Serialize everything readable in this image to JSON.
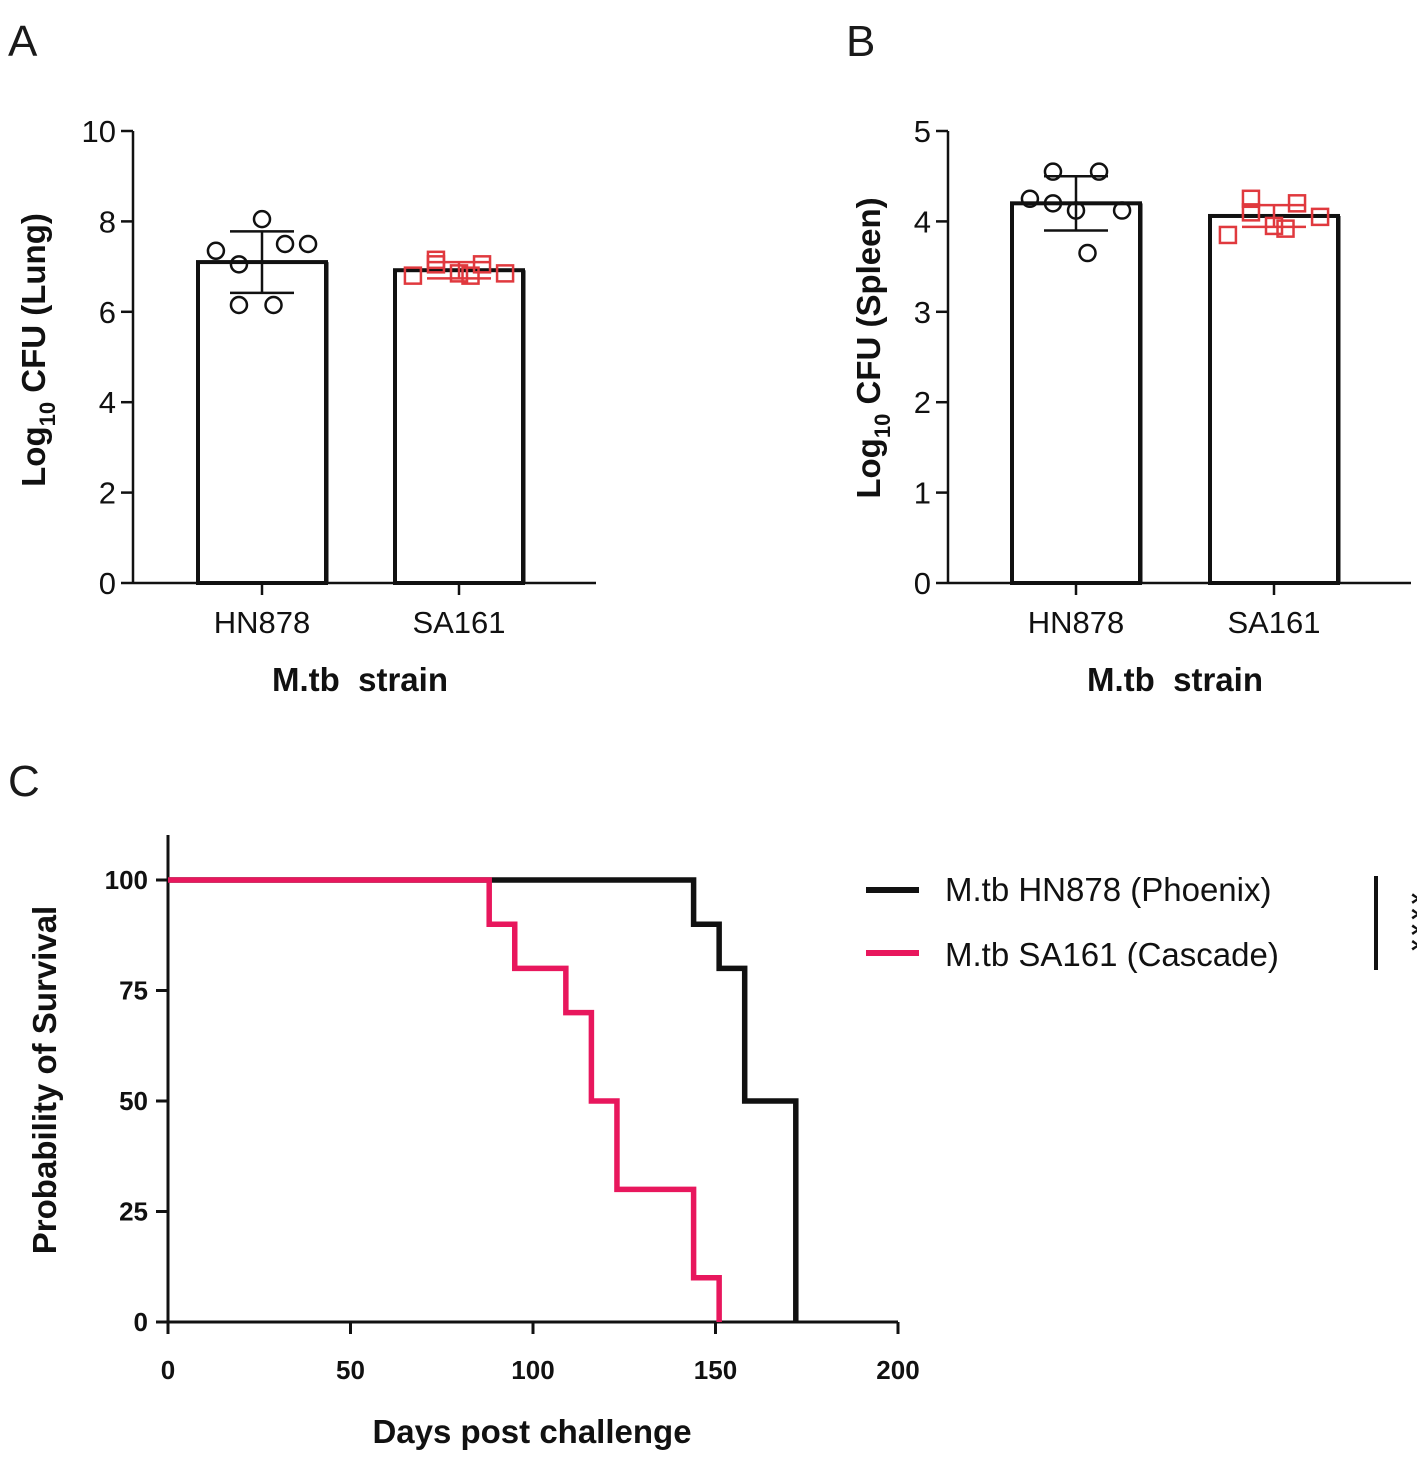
{
  "chart_data": [
    {
      "panel": "A",
      "type": "bar",
      "ylabel_main": "Log",
      "ylabel_sub": "10",
      "ylabel_rest": " CFU (Lung)",
      "xlabel": "M.tb  strain",
      "ylim": [
        0,
        10
      ],
      "yticks": [
        0,
        2,
        4,
        6,
        8,
        10
      ],
      "categories": [
        "HN878",
        "SA161"
      ],
      "means": [
        7.1,
        6.92
      ],
      "sd": [
        0.68,
        0.18
      ],
      "points": [
        {
          "color": "#111111",
          "marker": "circle",
          "values": [
            7.35,
            7.05,
            8.05,
            7.5,
            7.5,
            6.15,
            6.15
          ]
        },
        {
          "color": "#e0393e",
          "marker": "square",
          "values": [
            6.8,
            7.05,
            6.85,
            7.05,
            6.85,
            7.15,
            6.8
          ]
        }
      ]
    },
    {
      "panel": "B",
      "type": "bar",
      "ylabel_main": "Log",
      "ylabel_sub": "10",
      "ylabel_rest": " CFU (Spleen)",
      "xlabel": "M.tb  strain",
      "ylim": [
        0,
        5
      ],
      "yticks": [
        0,
        1,
        2,
        3,
        4,
        5
      ],
      "categories": [
        "HN878",
        "SA161"
      ],
      "means": [
        4.2,
        4.06
      ],
      "sd": [
        0.3,
        0.12
      ],
      "points": [
        {
          "color": "#111111",
          "marker": "circle",
          "values": [
            4.25,
            4.55,
            4.12,
            4.55,
            4.12,
            4.2,
            3.65
          ]
        },
        {
          "color": "#e0393e",
          "marker": "square",
          "values": [
            3.85,
            4.1,
            3.95,
            4.2,
            4.05,
            4.25,
            3.92
          ]
        }
      ]
    },
    {
      "panel": "C",
      "type": "line",
      "subtype": "kaplan-meier",
      "xlabel": "Days post challenge",
      "ylabel": "Probability of Survival",
      "xlim": [
        0,
        200
      ],
      "ylim": [
        0,
        110
      ],
      "xticks": [
        0,
        50,
        100,
        150,
        200
      ],
      "yticks": [
        0,
        25,
        50,
        75,
        100
      ],
      "series": [
        {
          "name": "M.tb HN878 (Phoenix)",
          "color": "#111111",
          "x": [
            0,
            144,
            151,
            158,
            172
          ],
          "y": [
            100,
            90,
            80,
            50,
            0
          ]
        },
        {
          "name": "M.tb SA161 (Cascade)",
          "color": "#e8175d",
          "x": [
            0,
            88,
            95,
            109,
            116,
            123,
            144,
            151
          ],
          "y": [
            100,
            90,
            80,
            70,
            50,
            30,
            10,
            0
          ]
        }
      ],
      "significance": "****"
    }
  ]
}
